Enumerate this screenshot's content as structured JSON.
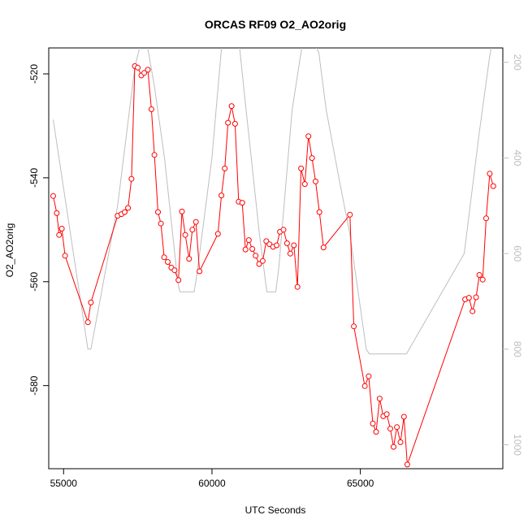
{
  "chart_data": {
    "type": "line",
    "title": "ORCAS RF09 O2_AO2orig",
    "xlabel": "UTC Seconds",
    "ylabel": "O2_AO2orig",
    "xlim": [
      54500,
      69800
    ],
    "ylim": [
      -596,
      -515
    ],
    "x_ticks": [
      55000,
      60000,
      65000
    ],
    "x_tick_labels": [
      "55000",
      "60000",
      "65000"
    ],
    "y_ticks": [
      -520,
      -540,
      -560,
      -580
    ],
    "y_tick_labels": [
      "-520",
      "-540",
      "-560",
      "-580"
    ],
    "right_axis": {
      "ylim": [
        1050,
        170
      ],
      "ticks": [
        200,
        400,
        600,
        800,
        1000
      ],
      "tick_labels": [
        "200",
        "400",
        "600",
        "800",
        "1000"
      ],
      "color": "#bebebe"
    },
    "grid": false,
    "series": [
      {
        "color": "#ff0000",
        "style": "line+open-circles",
        "points": [
          [
            54650,
            -543.5
          ],
          [
            54770,
            -546.8
          ],
          [
            54850,
            -551.0
          ],
          [
            54940,
            -549.8
          ],
          [
            55050,
            -555.0
          ],
          [
            55820,
            -567.8
          ],
          [
            55920,
            -564.0
          ],
          [
            56820,
            -547.3
          ],
          [
            56950,
            -547.0
          ],
          [
            57060,
            -546.6
          ],
          [
            57170,
            -545.8
          ],
          [
            57290,
            -540.2
          ],
          [
            57400,
            -518.5
          ],
          [
            57500,
            -518.8
          ],
          [
            57620,
            -520.3
          ],
          [
            57720,
            -519.8
          ],
          [
            57840,
            -519.2
          ],
          [
            57960,
            -526.8
          ],
          [
            58060,
            -535.6
          ],
          [
            58180,
            -546.6
          ],
          [
            58280,
            -548.8
          ],
          [
            58390,
            -555.3
          ],
          [
            58510,
            -556.2
          ],
          [
            58630,
            -557.3
          ],
          [
            58740,
            -557.8
          ],
          [
            58870,
            -559.7
          ],
          [
            58990,
            -546.5
          ],
          [
            59100,
            -551.0
          ],
          [
            59230,
            -555.6
          ],
          [
            59340,
            -550.0
          ],
          [
            59460,
            -548.5
          ],
          [
            59580,
            -558.0
          ],
          [
            60200,
            -550.8
          ],
          [
            60320,
            -543.4
          ],
          [
            60430,
            -538.2
          ],
          [
            60540,
            -529.4
          ],
          [
            60660,
            -526.2
          ],
          [
            60780,
            -529.6
          ],
          [
            60900,
            -544.6
          ],
          [
            61020,
            -544.8
          ],
          [
            61130,
            -553.8
          ],
          [
            61240,
            -552.0
          ],
          [
            61360,
            -553.7
          ],
          [
            61470,
            -555.0
          ],
          [
            61590,
            -556.6
          ],
          [
            61710,
            -556.0
          ],
          [
            61830,
            -552.2
          ],
          [
            61940,
            -552.8
          ],
          [
            62060,
            -553.3
          ],
          [
            62180,
            -553.0
          ],
          [
            62290,
            -550.4
          ],
          [
            62410,
            -550.0
          ],
          [
            62530,
            -552.6
          ],
          [
            62640,
            -554.6
          ],
          [
            62760,
            -553.0
          ],
          [
            62880,
            -561.0
          ],
          [
            63000,
            -538.2
          ],
          [
            63130,
            -541.2
          ],
          [
            63250,
            -532.0
          ],
          [
            63370,
            -536.2
          ],
          [
            63490,
            -540.7
          ],
          [
            63620,
            -546.6
          ],
          [
            63760,
            -553.4
          ],
          [
            64650,
            -547.1
          ],
          [
            64780,
            -568.6
          ],
          [
            65150,
            -580.1
          ],
          [
            65280,
            -578.2
          ],
          [
            65420,
            -587.3
          ],
          [
            65530,
            -588.9
          ],
          [
            65650,
            -582.5
          ],
          [
            65770,
            -585.9
          ],
          [
            65890,
            -585.5
          ],
          [
            66010,
            -588.3
          ],
          [
            66120,
            -591.8
          ],
          [
            66230,
            -588.0
          ],
          [
            66350,
            -590.9
          ],
          [
            66470,
            -586.0
          ],
          [
            66580,
            -595.2
          ],
          [
            68530,
            -563.4
          ],
          [
            68660,
            -563.1
          ],
          [
            68780,
            -565.7
          ],
          [
            68900,
            -563.0
          ],
          [
            69010,
            -558.7
          ],
          [
            69120,
            -559.6
          ],
          [
            69240,
            -547.8
          ],
          [
            69360,
            -539.2
          ],
          [
            69480,
            -541.6
          ]
        ]
      },
      {
        "color": "#bebebe",
        "style": "line",
        "axis": "right",
        "points": [
          [
            54650,
            320
          ],
          [
            55820,
            800
          ],
          [
            55920,
            800
          ],
          [
            56820,
            500
          ],
          [
            57400,
            210
          ],
          [
            57720,
            130
          ],
          [
            58060,
            250
          ],
          [
            58400,
            400
          ],
          [
            58850,
            660
          ],
          [
            58920,
            680
          ],
          [
            59400,
            680
          ],
          [
            59480,
            650
          ],
          [
            60000,
            400
          ],
          [
            60350,
            150
          ],
          [
            60500,
            100
          ],
          [
            60900,
            150
          ],
          [
            61100,
            270
          ],
          [
            61600,
            560
          ],
          [
            61850,
            680
          ],
          [
            62150,
            680
          ],
          [
            62250,
            630
          ],
          [
            62700,
            300
          ],
          [
            63150,
            120
          ],
          [
            63600,
            180
          ],
          [
            63850,
            300
          ],
          [
            64300,
            450
          ],
          [
            64650,
            560
          ],
          [
            65200,
            800
          ],
          [
            65300,
            810
          ],
          [
            66550,
            810
          ],
          [
            68500,
            600
          ],
          [
            69000,
            350
          ],
          [
            69350,
            190
          ],
          [
            69550,
            120
          ]
        ]
      }
    ]
  }
}
